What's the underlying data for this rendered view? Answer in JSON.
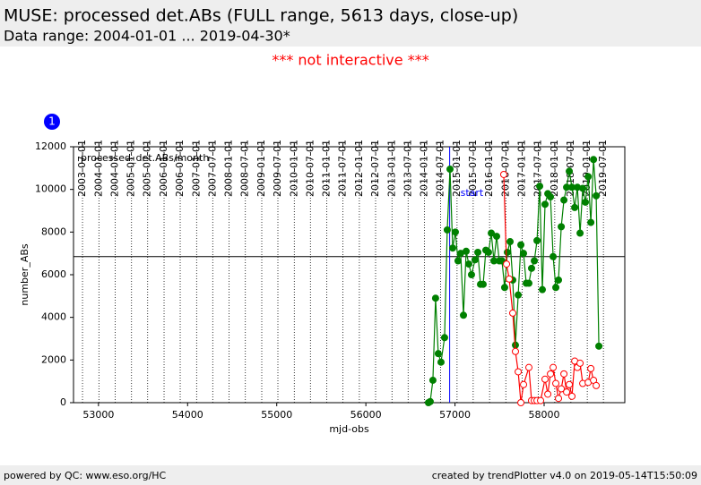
{
  "header": {
    "title": "MUSE: processed det.ABs (FULL range, 5613 days, close-up)",
    "subtitle": "Data range: 2004-01-01 ... 2019-04-30*"
  },
  "notice": "*** not interactive ***",
  "badge": "1",
  "footer": {
    "left": "powered by QC: www.eso.org/HC",
    "right": "created by trendPlotter v4.0 on 2019-05-14T15:50:09"
  },
  "chart_data": {
    "type": "line",
    "annotation": "processed_det.ABs/month",
    "xlabel": "mjd-obs",
    "ylabel": "number_ABs",
    "xlim": [
      52720,
      58905
    ],
    "ylim": [
      0,
      12000
    ],
    "xticks": [
      53000,
      54000,
      55000,
      56000,
      57000,
      58000
    ],
    "yticks": [
      0,
      2000,
      4000,
      6000,
      8000,
      10000,
      12000
    ],
    "x2ticks": [
      {
        "value": 52821,
        "label": "2003-07-01"
      },
      {
        "value": 53005,
        "label": "2004-01-01"
      },
      {
        "value": 53187,
        "label": "2004-07-01"
      },
      {
        "value": 53371,
        "label": "2005-01-01"
      },
      {
        "value": 53552,
        "label": "2005-07-01"
      },
      {
        "value": 53736,
        "label": "2006-01-01"
      },
      {
        "value": 53917,
        "label": "2006-07-01"
      },
      {
        "value": 54101,
        "label": "2007-01-01"
      },
      {
        "value": 54282,
        "label": "2007-07-01"
      },
      {
        "value": 54466,
        "label": "2008-01-01"
      },
      {
        "value": 54648,
        "label": "2008-07-01"
      },
      {
        "value": 54832,
        "label": "2009-01-01"
      },
      {
        "value": 55013,
        "label": "2009-07-01"
      },
      {
        "value": 55197,
        "label": "2010-01-01"
      },
      {
        "value": 55378,
        "label": "2010-07-01"
      },
      {
        "value": 55562,
        "label": "2011-01-01"
      },
      {
        "value": 55743,
        "label": "2011-07-01"
      },
      {
        "value": 55927,
        "label": "2012-01-01"
      },
      {
        "value": 56109,
        "label": "2012-07-01"
      },
      {
        "value": 56293,
        "label": "2013-01-01"
      },
      {
        "value": 56474,
        "label": "2013-07-01"
      },
      {
        "value": 56658,
        "label": "2014-01-01"
      },
      {
        "value": 56839,
        "label": "2014-07-01"
      },
      {
        "value": 57023,
        "label": "2015-01-01"
      },
      {
        "value": 57204,
        "label": "2015-07-01"
      },
      {
        "value": 57388,
        "label": "2016-01-01"
      },
      {
        "value": 57570,
        "label": "2016-07-01"
      },
      {
        "value": 57754,
        "label": "2017-01-01"
      },
      {
        "value": 57935,
        "label": "2017-07-01"
      },
      {
        "value": 58119,
        "label": "2018-01-01"
      },
      {
        "value": 58300,
        "label": "2018-07-01"
      },
      {
        "value": 58484,
        "label": "2019-01-01"
      },
      {
        "value": 58665,
        "label": "2019-07-01"
      }
    ],
    "hline": 6850,
    "vline": {
      "value": 56940,
      "label": "start",
      "color": "#0000ff"
    },
    "series": [
      {
        "color": "#008000",
        "filled": true,
        "x": [
          56702,
          56722,
          56752,
          56782,
          56812,
          56843,
          56883,
          56913,
          56944,
          56974,
          57004,
          57034,
          57064,
          57095,
          57125,
          57155,
          57185,
          57225,
          57256,
          57286,
          57316,
          57346,
          57376,
          57407,
          57437,
          57467,
          57497,
          57527,
          57557,
          57588,
          57618,
          57648,
          57678,
          57709,
          57739,
          57769,
          57799,
          57829,
          57859,
          57890,
          57920,
          57950,
          57980,
          58010,
          58041,
          58071,
          58101,
          58131,
          58161,
          58192,
          58222,
          58252,
          58282,
          58312,
          58343,
          58373,
          58403,
          58433,
          58463,
          58494,
          58524,
          58554,
          58584,
          58614
        ],
        "values": [
          0,
          50,
          1050,
          4900,
          2300,
          1900,
          3050,
          8100,
          10950,
          7250,
          8000,
          6650,
          7000,
          4100,
          7100,
          6500,
          6000,
          6700,
          7050,
          5550,
          5550,
          7150,
          7050,
          7950,
          6650,
          7800,
          6650,
          6650,
          5400,
          7050,
          7550,
          5750,
          2700,
          5050,
          7400,
          7000,
          5600,
          5600,
          6300,
          6650,
          7600,
          10150,
          5300,
          9300,
          9800,
          9650,
          6850,
          5400,
          5750,
          8250,
          9500,
          10100,
          10850,
          10100,
          9150,
          10100,
          7950,
          10050,
          9400,
          10600,
          8450,
          11400,
          9700,
          2650
        ]
      },
      {
        "color": "#ff0000",
        "filled": false,
        "x": [
          57547,
          57578,
          57608,
          57648,
          57678,
          57709,
          57739,
          57769,
          57829,
          57859,
          57890,
          57920,
          57960,
          58010,
          58041,
          58071,
          58101,
          58131,
          58161,
          58192,
          58222,
          58252,
          58282,
          58312,
          58343,
          58373,
          58403,
          58433,
          58494,
          58524,
          58554,
          58584
        ],
        "values": [
          10700,
          6500,
          5800,
          4200,
          2400,
          1450,
          0,
          850,
          1650,
          100,
          100,
          100,
          100,
          1100,
          400,
          1350,
          1650,
          900,
          200,
          650,
          1350,
          500,
          850,
          300,
          1950,
          1650,
          1850,
          900,
          950,
          1600,
          1050,
          800
        ]
      }
    ]
  }
}
